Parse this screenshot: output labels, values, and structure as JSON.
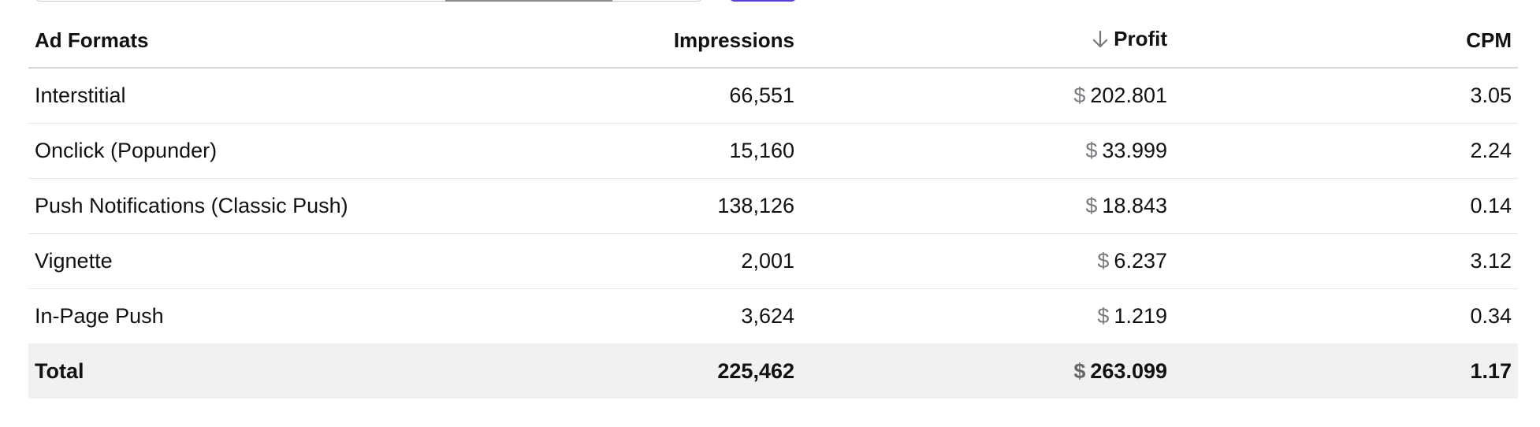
{
  "table": {
    "headers": {
      "format": "Ad Formats",
      "impressions": "Impressions",
      "profit": "Profit",
      "cpm": "CPM"
    },
    "sort": {
      "column": "profit",
      "direction": "descending",
      "icon": "arrow-down-icon"
    },
    "currency_symbol": "$",
    "rows": [
      {
        "format": "Interstitial",
        "impressions": "66,551",
        "profit": "202.801",
        "cpm": "3.05"
      },
      {
        "format": "Onclick (Popunder)",
        "impressions": "15,160",
        "profit": "33.999",
        "cpm": "2.24"
      },
      {
        "format": "Push Notifications (Classic Push)",
        "impressions": "138,126",
        "profit": "18.843",
        "cpm": "0.14"
      },
      {
        "format": "Vignette",
        "impressions": "2,001",
        "profit": "6.237",
        "cpm": "3.12"
      },
      {
        "format": "In-Page Push",
        "impressions": "3,624",
        "profit": "1.219",
        "cpm": "0.34"
      }
    ],
    "total": {
      "label": "Total",
      "impressions": "225,462",
      "profit": "263.099",
      "cpm": "1.17"
    }
  },
  "colors": {
    "accent": "#5b3fd6",
    "header_border": "#d8d8dc",
    "row_border": "#e7e7ea",
    "total_background": "#f1f1f2",
    "currency_text": "#7a7a7f"
  }
}
